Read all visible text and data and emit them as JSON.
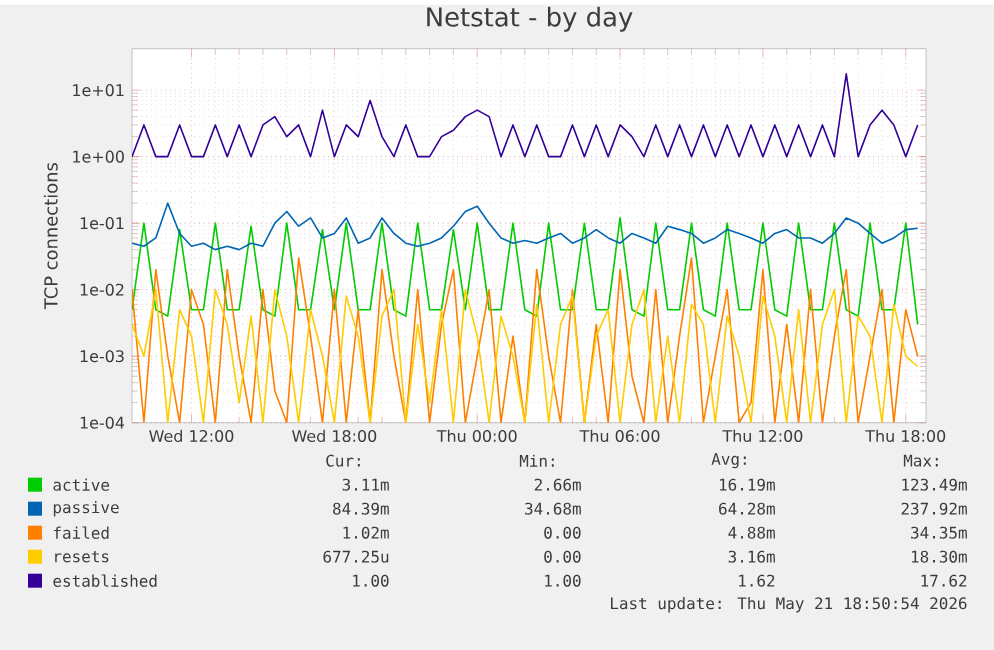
{
  "chart_data": {
    "type": "line",
    "title": "Netstat - by day",
    "ylabel": "TCP connections",
    "log": "y",
    "grid": true,
    "legend": "bottom",
    "xlim": [
      "2026-05-20T09:30",
      "2026-05-21T18:51"
    ],
    "ylim": [
      0.0001,
      42
    ],
    "xticks": [
      {
        "value": "2026-05-20T12:00",
        "label": "Wed 12:00"
      },
      {
        "value": "2026-05-20T18:00",
        "label": "Wed 18:00"
      },
      {
        "value": "2026-05-21T00:00",
        "label": "Thu 00:00"
      },
      {
        "value": "2026-05-21T06:00",
        "label": "Thu 06:00"
      },
      {
        "value": "2026-05-21T12:00",
        "label": "Thu 12:00"
      },
      {
        "value": "2026-05-21T18:00",
        "label": "Thu 18:00"
      }
    ],
    "yticks": [
      {
        "value": 0.0001,
        "label": "1e-04"
      },
      {
        "value": 0.001,
        "label": "1e-03"
      },
      {
        "value": 0.01,
        "label": "1e-02"
      },
      {
        "value": 0.1,
        "label": "1e-01"
      },
      {
        "value": 1,
        "label": "1e+00"
      },
      {
        "value": 10,
        "label": "1e+01"
      }
    ],
    "x": [
      "2026-05-20T09:30",
      "2026-05-20T10:00",
      "2026-05-20T10:30",
      "2026-05-20T11:00",
      "2026-05-20T11:30",
      "2026-05-20T12:00",
      "2026-05-20T12:30",
      "2026-05-20T13:00",
      "2026-05-20T13:30",
      "2026-05-20T14:00",
      "2026-05-20T14:30",
      "2026-05-20T15:00",
      "2026-05-20T15:30",
      "2026-05-20T16:00",
      "2026-05-20T16:30",
      "2026-05-20T17:00",
      "2026-05-20T17:30",
      "2026-05-20T18:00",
      "2026-05-20T18:30",
      "2026-05-20T19:00",
      "2026-05-20T19:30",
      "2026-05-20T20:00",
      "2026-05-20T20:30",
      "2026-05-20T21:00",
      "2026-05-20T21:30",
      "2026-05-20T22:00",
      "2026-05-20T22:30",
      "2026-05-20T23:00",
      "2026-05-20T23:30",
      "2026-05-21T00:00",
      "2026-05-21T00:30",
      "2026-05-21T01:00",
      "2026-05-21T01:30",
      "2026-05-21T02:00",
      "2026-05-21T02:30",
      "2026-05-21T03:00",
      "2026-05-21T03:30",
      "2026-05-21T04:00",
      "2026-05-21T04:30",
      "2026-05-21T05:00",
      "2026-05-21T05:30",
      "2026-05-21T06:00",
      "2026-05-21T06:30",
      "2026-05-21T07:00",
      "2026-05-21T07:30",
      "2026-05-21T08:00",
      "2026-05-21T08:30",
      "2026-05-21T09:00",
      "2026-05-21T09:30",
      "2026-05-21T10:00",
      "2026-05-21T10:30",
      "2026-05-21T11:00",
      "2026-05-21T11:30",
      "2026-05-21T12:00",
      "2026-05-21T12:30",
      "2026-05-21T13:00",
      "2026-05-21T13:30",
      "2026-05-21T14:00",
      "2026-05-21T14:30",
      "2026-05-21T15:00",
      "2026-05-21T15:30",
      "2026-05-21T16:00",
      "2026-05-21T16:30",
      "2026-05-21T17:00",
      "2026-05-21T17:30",
      "2026-05-21T18:00",
      "2026-05-21T18:30"
    ],
    "series": [
      {
        "name": "active",
        "color": "#00cc00",
        "values": [
          0.005,
          0.1,
          0.005,
          0.004,
          0.08,
          0.005,
          0.005,
          0.1,
          0.005,
          0.005,
          0.09,
          0.005,
          0.004,
          0.1,
          0.005,
          0.005,
          0.08,
          0.005,
          0.1,
          0.005,
          0.005,
          0.1,
          0.005,
          0.004,
          0.1,
          0.005,
          0.005,
          0.08,
          0.005,
          0.1,
          0.005,
          0.005,
          0.1,
          0.005,
          0.004,
          0.1,
          0.005,
          0.005,
          0.1,
          0.005,
          0.005,
          0.12,
          0.005,
          0.004,
          0.1,
          0.005,
          0.005,
          0.1,
          0.005,
          0.004,
          0.1,
          0.005,
          0.005,
          0.1,
          0.005,
          0.004,
          0.1,
          0.005,
          0.005,
          0.1,
          0.005,
          0.004,
          0.1,
          0.005,
          0.005,
          0.1,
          0.003
        ]
      },
      {
        "name": "passive",
        "color": "#0066b3",
        "values": [
          0.05,
          0.045,
          0.06,
          0.2,
          0.07,
          0.045,
          0.05,
          0.04,
          0.045,
          0.04,
          0.05,
          0.045,
          0.1,
          0.15,
          0.09,
          0.12,
          0.06,
          0.07,
          0.12,
          0.05,
          0.06,
          0.12,
          0.07,
          0.05,
          0.045,
          0.05,
          0.06,
          0.09,
          0.15,
          0.18,
          0.1,
          0.06,
          0.05,
          0.055,
          0.05,
          0.06,
          0.07,
          0.05,
          0.06,
          0.08,
          0.06,
          0.05,
          0.07,
          0.06,
          0.05,
          0.09,
          0.08,
          0.07,
          0.05,
          0.06,
          0.08,
          0.07,
          0.06,
          0.05,
          0.07,
          0.08,
          0.06,
          0.06,
          0.05,
          0.07,
          0.12,
          0.1,
          0.07,
          0.05,
          0.06,
          0.08,
          0.084
        ]
      },
      {
        "name": "failed",
        "color": "#ff8000",
        "values": [
          0.01,
          0.0001,
          0.02,
          0.001,
          0.0001,
          0.01,
          0.003,
          0.0001,
          0.02,
          0.001,
          0.0001,
          0.01,
          0.0003,
          0.0001,
          0.03,
          0.002,
          0.0001,
          0.01,
          0.0001,
          0.005,
          0.0001,
          0.02,
          0.001,
          0.0001,
          0.01,
          0.0001,
          0.003,
          0.02,
          0.0001,
          0.001,
          0.01,
          0.0001,
          0.002,
          0.0001,
          0.02,
          0.001,
          0.0001,
          0.01,
          0.0001,
          0.003,
          0.0001,
          0.02,
          0.0005,
          0.0001,
          0.01,
          0.0001,
          0.002,
          0.03,
          0.0001,
          0.001,
          0.01,
          0.0001,
          0.0002,
          0.02,
          0.0001,
          0.003,
          0.0001,
          0.01,
          0.0001,
          0.002,
          0.02,
          0.0001,
          0.001,
          0.01,
          0.0001,
          0.005,
          0.001
        ]
      },
      {
        "name": "resets",
        "color": "#ffcc00",
        "values": [
          0.003,
          0.001,
          0.01,
          0.0001,
          0.005,
          0.002,
          0.0001,
          0.01,
          0.003,
          0.0002,
          0.004,
          0.0001,
          0.01,
          0.002,
          0.0001,
          0.005,
          0.001,
          0.0001,
          0.008,
          0.002,
          0.0001,
          0.004,
          0.01,
          0.0001,
          0.003,
          0.0002,
          0.005,
          0.0001,
          0.01,
          0.002,
          0.0001,
          0.004,
          0.001,
          0.0001,
          0.006,
          0.0001,
          0.003,
          0.008,
          0.0001,
          0.002,
          0.005,
          0.0001,
          0.003,
          0.01,
          0.0001,
          0.002,
          0.0001,
          0.006,
          0.003,
          0.0001,
          0.004,
          0.001,
          0.0001,
          0.008,
          0.002,
          0.0001,
          0.005,
          0.0001,
          0.003,
          0.01,
          0.0001,
          0.004,
          0.002,
          0.0001,
          0.006,
          0.001,
          0.0007
        ]
      },
      {
        "name": "established",
        "color": "#330099",
        "values": [
          1,
          3,
          1,
          1,
          3,
          1,
          1,
          3,
          1,
          3,
          1,
          3,
          4,
          2,
          3,
          1,
          5,
          1,
          3,
          2,
          7,
          2,
          1,
          3,
          1,
          1,
          2,
          2.5,
          4,
          5,
          4,
          1,
          3,
          1,
          3,
          1,
          1,
          3,
          1,
          3,
          1,
          3,
          2,
          1,
          3,
          1,
          3,
          1,
          3,
          1,
          3,
          1,
          3,
          1,
          3,
          1,
          3,
          1,
          3,
          1,
          17.62,
          1,
          3,
          5,
          3,
          1,
          3
        ]
      }
    ],
    "annotations": [
      "Cur:",
      "Min:",
      "Avg:",
      "Max:",
      "3.11m",
      "2.66m",
      "16.19m",
      "123.49m",
      "84.39m",
      "34.68m",
      "64.28m",
      "237.92m",
      "1.02m",
      "0.00",
      "4.88m",
      "34.35m",
      "677.25u",
      "0.00",
      "3.16m",
      "18.30m",
      "1.00",
      "1.00",
      "1.62",
      "17.62",
      "Last update: Thu May 21 18:50:54 2026"
    ]
  }
}
